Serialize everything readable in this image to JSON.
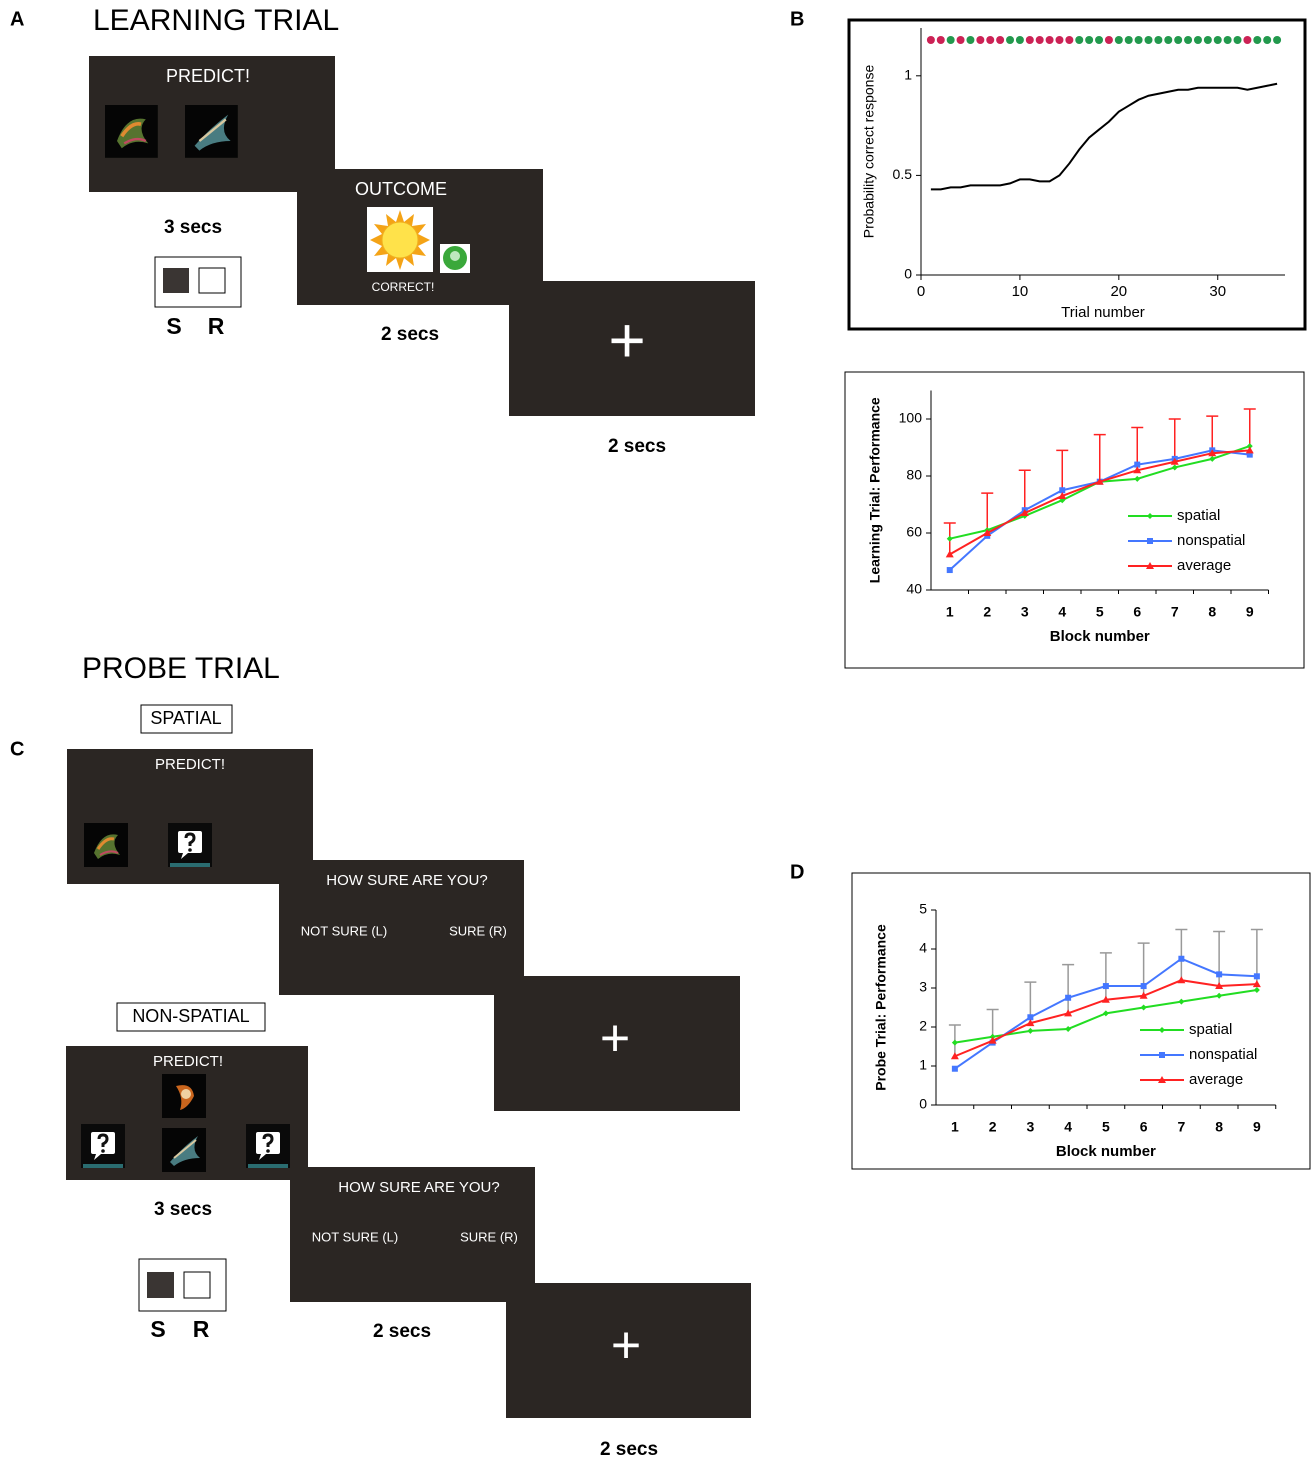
{
  "panel_labels": [
    "A",
    "B",
    "C",
    "D"
  ],
  "learning_trial": {
    "title": "LEARNING TRIAL",
    "predict": "PREDICT!",
    "outcome": "OUTCOME",
    "feedback": "CORRECT!",
    "fixation": "+",
    "durations": [
      "3 secs",
      "2 secs",
      "2 secs"
    ],
    "keys": [
      "S",
      "R"
    ]
  },
  "probe_trial": {
    "title": "PROBE TRIAL",
    "spatial": {
      "label": "SPATIAL",
      "predict": "PREDICT!",
      "question": "HOW SURE ARE YOU?",
      "options": [
        "NOT SURE (L)",
        "SURE (R)"
      ],
      "fixation": "+"
    },
    "non_spatial": {
      "label": "NON-SPATIAL",
      "predict": "PREDICT!",
      "question": "HOW SURE ARE YOU?",
      "options": [
        "NOT SURE (L)",
        "SURE (R)"
      ],
      "fixation": "+"
    },
    "durations": [
      "3 secs",
      "2 secs",
      "2 secs"
    ],
    "keys": [
      "S",
      "R"
    ]
  },
  "chart_data": [
    {
      "type": "line",
      "x_label": "Trial number",
      "y_label": "Probability correct response",
      "x": [
        1,
        2,
        3,
        4,
        5,
        6,
        7,
        8,
        9,
        10,
        11,
        12,
        13,
        14,
        15,
        16,
        17,
        18,
        19,
        20,
        21,
        22,
        23,
        24,
        25,
        26,
        27,
        28,
        29,
        30,
        31,
        32,
        33,
        34,
        35,
        36
      ],
      "series": [
        {
          "color": "#000000",
          "values": [
            0.43,
            0.43,
            0.44,
            0.44,
            0.45,
            0.45,
            0.45,
            0.45,
            0.46,
            0.48,
            0.48,
            0.47,
            0.47,
            0.5,
            0.56,
            0.63,
            0.69,
            0.73,
            0.77,
            0.82,
            0.85,
            0.88,
            0.9,
            0.91,
            0.92,
            0.93,
            0.93,
            0.94,
            0.94,
            0.94,
            0.94,
            0.94,
            0.93,
            0.94,
            0.95,
            0.96
          ]
        }
      ],
      "trial_outcomes": {
        "x": [
          1,
          2,
          3,
          4,
          5,
          6,
          7,
          8,
          9,
          10,
          11,
          12,
          13,
          14,
          15,
          16,
          17,
          18,
          19,
          20,
          21,
          22,
          23,
          24,
          25,
          26,
          27,
          28,
          29,
          30,
          31,
          32,
          33,
          34,
          35,
          36
        ],
        "colors": [
          "#cc2255",
          "#cc2255",
          "#22994d",
          "#cc2255",
          "#22994d",
          "#cc2255",
          "#cc2255",
          "#cc2255",
          "#22994d",
          "#22994d",
          "#cc2255",
          "#cc2255",
          "#cc2255",
          "#cc2255",
          "#cc2255",
          "#22994d",
          "#22994d",
          "#22994d",
          "#cc2255",
          "#22994d",
          "#22994d",
          "#22994d",
          "#22994d",
          "#22994d",
          "#22994d",
          "#22994d",
          "#22994d",
          "#22994d",
          "#22994d",
          "#22994d",
          "#22994d",
          "#22994d",
          "#cc2255",
          "#22994d",
          "#22994d",
          "#22994d"
        ]
      },
      "xlim": [
        0,
        36.8
      ],
      "ylim": [
        0,
        1.24
      ],
      "xticks": [
        0,
        10,
        20,
        30
      ],
      "yticks": [
        0,
        0.5,
        1
      ]
    },
    {
      "type": "line",
      "x_label": "Block number",
      "y_label": "Learning Trial: Performance",
      "categories": [
        "1",
        "2",
        "3",
        "4",
        "5",
        "6",
        "7",
        "8",
        "9"
      ],
      "series": [
        {
          "name": "spatial",
          "color": "#22dd22",
          "marker": "diamond",
          "values": [
            58,
            61,
            66,
            71.5,
            78,
            79,
            83,
            86,
            90.5
          ]
        },
        {
          "name": "nonspatial",
          "color": "#4477ff",
          "marker": "square",
          "values": [
            47,
            59,
            68,
            75,
            78,
            84,
            86,
            89,
            87.5
          ]
        },
        {
          "name": "average",
          "color": "#ff2222",
          "marker": "triangle",
          "values": [
            52.5,
            60,
            67,
            73,
            78,
            82,
            85,
            88,
            89
          ],
          "errors": [
            11,
            14,
            15,
            16,
            16.5,
            15,
            15,
            13,
            14.5
          ],
          "error_color": "#ff2222"
        }
      ],
      "ylim": [
        40,
        110
      ],
      "yticks": [
        40,
        60,
        80,
        100
      ],
      "legend": "right"
    },
    {
      "type": "line",
      "x_label": "Block number",
      "y_label": "Probe Trial: Performance",
      "categories": [
        "1",
        "2",
        "3",
        "4",
        "5",
        "6",
        "7",
        "8",
        "9"
      ],
      "series": [
        {
          "name": "spatial",
          "color": "#22dd22",
          "marker": "diamond",
          "values": [
            1.6,
            1.75,
            1.9,
            1.95,
            2.35,
            2.5,
            2.65,
            2.8,
            2.95
          ]
        },
        {
          "name": "nonspatial",
          "color": "#4477ff",
          "marker": "square",
          "values": [
            0.93,
            1.6,
            2.25,
            2.75,
            3.05,
            3.05,
            3.75,
            3.35,
            3.3
          ]
        },
        {
          "name": "average",
          "color": "#ff2222",
          "marker": "triangle",
          "values": [
            1.25,
            1.65,
            2.1,
            2.35,
            2.7,
            2.8,
            3.2,
            3.05,
            3.1
          ],
          "errors": [
            0.8,
            0.8,
            1.05,
            1.25,
            1.2,
            1.35,
            1.3,
            1.4,
            1.4
          ],
          "error_color": "#999999"
        }
      ],
      "ylim": [
        0,
        5
      ],
      "yticks": [
        0,
        1,
        2,
        3,
        4,
        5
      ],
      "legend": "right"
    }
  ]
}
